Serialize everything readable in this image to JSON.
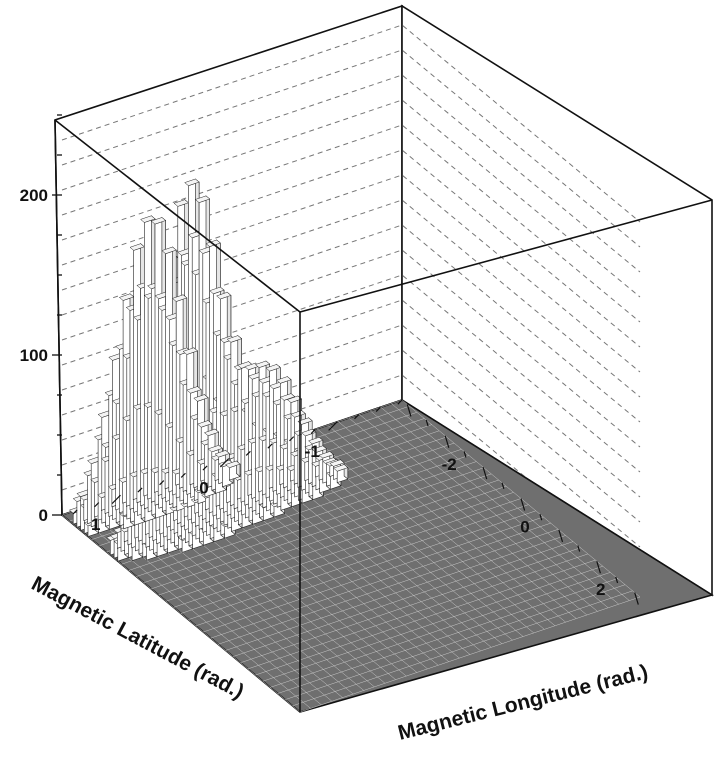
{
  "chart_data": {
    "type": "lego3d-histogram",
    "zlim": [
      0,
      250
    ],
    "z_ticks": [
      "0",
      "100",
      "200"
    ],
    "xlim": [
      -3.14,
      3.14
    ],
    "ylim": [
      -1.57,
      1.57
    ],
    "x_ticks": [
      "-2",
      "0",
      "2"
    ],
    "y_ticks": [
      "-1",
      "0",
      "1"
    ],
    "xlabel": "Magnetic Longitude (rad.)",
    "ylabel": "Magnetic Latitude (rad.)",
    "grid": true,
    "background_level": 3,
    "peaks": [
      {
        "longitude": -2.7,
        "latitude": 0.9,
        "height": 180,
        "sigma_longitude": 0.13,
        "sigma_latitude": 0.3
      },
      {
        "longitude": -1.9,
        "latitude": 0.1,
        "height": 80,
        "sigma_longitude": 0.16,
        "sigma_latitude": 0.3
      },
      {
        "longitude": -1.8,
        "latitude": 0.85,
        "height": 215,
        "sigma_longitude": 0.15,
        "sigma_latitude": 0.28
      }
    ]
  }
}
